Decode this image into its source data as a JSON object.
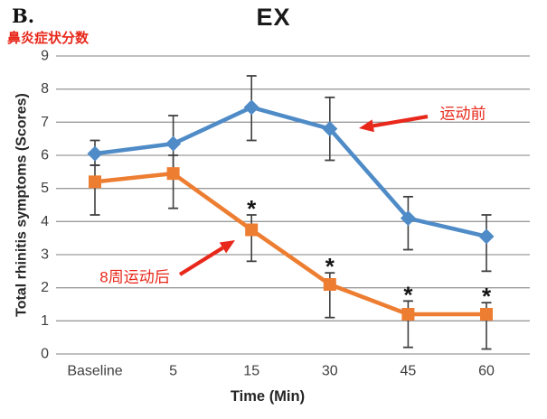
{
  "chart_data": {
    "type": "line",
    "panel_label": "B.",
    "subtitle_cn": "鼻炎症状分数",
    "title": "EX",
    "xlabel": "Time (Min)",
    "ylabel": "Total rhinitis symptoms (Scores)",
    "categories": [
      "Baseline",
      "5",
      "15",
      "30",
      "45",
      "60"
    ],
    "ylim": [
      0,
      9
    ],
    "ytick_step": 1,
    "grid": true,
    "legend": "none (series labeled by red arrow annotations)",
    "series": [
      {
        "name": "运动前",
        "marker": "diamond",
        "color": "#4E8BC7",
        "values": [
          6.05,
          6.35,
          7.45,
          6.8,
          4.1,
          3.55
        ],
        "error_hi": [
          6.45,
          7.2,
          8.4,
          7.75,
          4.75,
          4.2
        ],
        "error_lo": [
          5.7,
          5.5,
          6.45,
          5.85,
          3.15,
          2.5
        ]
      },
      {
        "name": "8周运动后",
        "marker": "square",
        "color": "#ED7D31",
        "values": [
          5.2,
          5.45,
          3.75,
          2.1,
          1.2,
          1.2
        ],
        "error_hi": [
          5.7,
          6.0,
          4.2,
          2.45,
          1.6,
          1.55
        ],
        "error_lo": [
          4.2,
          4.4,
          2.8,
          1.1,
          0.2,
          0.15
        ]
      }
    ],
    "significance_marks": {
      "symbol": "*",
      "series_index": 1,
      "categories": [
        "15",
        "30",
        "45",
        "60"
      ]
    },
    "annotations": [
      {
        "text": "运动前",
        "target_series": 0,
        "target_category": "30"
      },
      {
        "text": "8周运动后",
        "target_series": 1,
        "target_category": "15"
      }
    ],
    "colors": {
      "gridline": "#9B9B9B",
      "error_bar": "#404040",
      "axis_text": "#3F3F3F",
      "axis_title_text": "#262626",
      "annotation_red": "#E8281B",
      "significance": "#141414",
      "background": "#FFFFFF"
    }
  }
}
